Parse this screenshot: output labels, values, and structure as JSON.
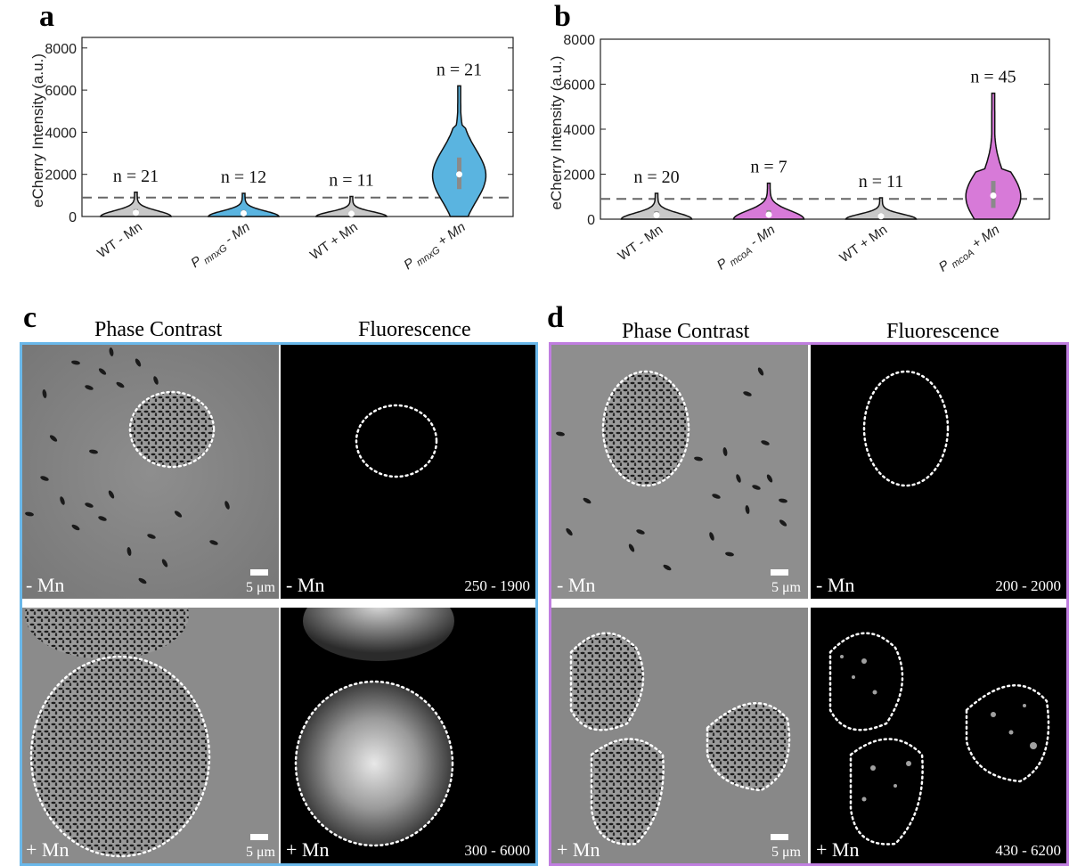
{
  "panels": {
    "a": "a",
    "b": "b",
    "c": "c",
    "d": "d"
  },
  "chart_data": [
    {
      "type": "violin",
      "panel": "a",
      "ylabel": "eCherry Intensity (a.u.)",
      "ylim": [
        0,
        8500
      ],
      "yticks": [
        0,
        2000,
        4000,
        6000,
        8000
      ],
      "threshold": 900,
      "categories": [
        {
          "main": "WT - Mn",
          "italic": false
        },
        {
          "p": "P",
          "sub": "mnxG",
          "rest": " - Mn",
          "italic": true
        },
        {
          "main": "WT + Mn",
          "italic": false
        },
        {
          "p": "P",
          "sub": "mnxG",
          "rest": " + Mn",
          "italic": true
        }
      ],
      "n_labels": [
        "n = 21",
        "n = 12",
        "n = 11",
        "n = 21"
      ],
      "colors": [
        "#c8c8c8",
        "#5ab4e0",
        "#c8c8c8",
        "#5ab4e0"
      ],
      "max": [
        1150,
        1100,
        950,
        6200
      ],
      "median": [
        180,
        150,
        130,
        2000
      ],
      "q1": [
        100,
        80,
        70,
        1300
      ],
      "q3": [
        350,
        300,
        250,
        2800
      ]
    },
    {
      "type": "violin",
      "panel": "b",
      "ylabel": "eCherry Intensity (a.u.)",
      "ylim": [
        0,
        8000
      ],
      "yticks": [
        0,
        2000,
        4000,
        6000,
        8000
      ],
      "threshold": 900,
      "categories": [
        {
          "main": "WT - Mn",
          "italic": false
        },
        {
          "p": "P",
          "sub": "mcoA",
          "rest": " - Mn",
          "italic": true
        },
        {
          "main": "WT + Mn",
          "italic": false
        },
        {
          "p": "P",
          "sub": "mcoA",
          "rest": " + Mn",
          "italic": true
        }
      ],
      "n_labels": [
        "n = 20",
        "n = 7",
        "n = 11",
        "n = 45"
      ],
      "colors": [
        "#c8c8c8",
        "#d77ad8",
        "#c8c8c8",
        "#d77ad8"
      ],
      "max": [
        1150,
        1600,
        950,
        5600
      ],
      "median": [
        180,
        200,
        130,
        1050
      ],
      "q1": [
        100,
        100,
        70,
        500
      ],
      "q3": [
        350,
        400,
        250,
        1700
      ]
    }
  ],
  "micrographs": {
    "c": {
      "titles": [
        "Phase Contrast",
        "Fluorescence"
      ],
      "frame_color": "#6ab8ea",
      "rows": [
        {
          "left_label": "- Mn",
          "scale": "5 μm",
          "right_label": "- Mn",
          "range": "250 - 1900"
        },
        {
          "left_label": "+ Mn",
          "scale": "5 μm",
          "right_label": "+ Mn",
          "range": "300 - 6000"
        }
      ]
    },
    "d": {
      "titles": [
        "Phase Contrast",
        "Fluorescence"
      ],
      "frame_color": "#c07ee0",
      "rows": [
        {
          "left_label": "- Mn",
          "scale": "5 μm",
          "right_label": "- Mn",
          "range": "200 - 2000"
        },
        {
          "left_label": "+ Mn",
          "scale": "5 μm",
          "right_label": "+ Mn",
          "range": "430 - 6200"
        }
      ]
    }
  }
}
